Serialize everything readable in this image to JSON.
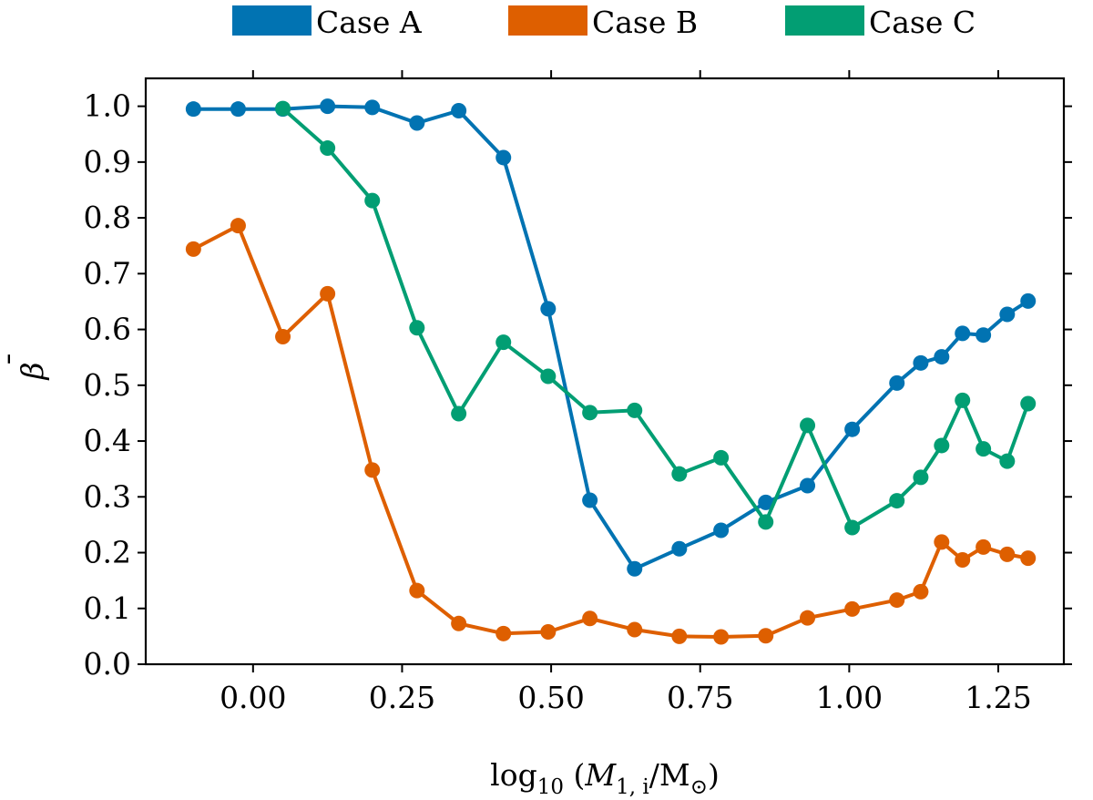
{
  "chart_data": {
    "type": "line",
    "xlabel_parts": {
      "base": "log",
      "sub": "10",
      "open": "(",
      "var": "M",
      "var_sub": "1, i",
      "slash": "/M",
      "sun": "⊙",
      "close": ")"
    },
    "ylabel_parts": {
      "symbol": "β",
      "bar": "¯"
    },
    "xlim": [
      -0.18,
      1.36
    ],
    "ylim": [
      0.0,
      1.05
    ],
    "xticks": [
      0.0,
      0.25,
      0.5,
      0.75,
      1.0,
      1.25
    ],
    "xtick_labels": [
      "0.00",
      "0.25",
      "0.50",
      "0.75",
      "1.00",
      "1.25"
    ],
    "yticks": [
      0.0,
      0.1,
      0.2,
      0.3,
      0.4,
      0.5,
      0.6,
      0.7,
      0.8,
      0.9,
      1.0
    ],
    "ytick_labels": [
      "0.0",
      "0.1",
      "0.2",
      "0.3",
      "0.4",
      "0.5",
      "0.6",
      "0.7",
      "0.8",
      "0.9",
      "1.0"
    ],
    "legend_position": "top-outside",
    "series": [
      {
        "name": "Case A",
        "color": "#0173b2",
        "x": [
          -0.1,
          -0.025,
          0.05,
          0.125,
          0.2,
          0.275,
          0.345,
          0.42,
          0.495,
          0.565,
          0.64,
          0.715,
          0.785,
          0.86,
          0.93,
          1.005,
          1.08,
          1.12,
          1.155,
          1.19,
          1.225,
          1.265,
          1.3
        ],
        "y": [
          0.995,
          0.995,
          0.995,
          1.0,
          0.998,
          0.97,
          0.992,
          0.908,
          0.637,
          0.294,
          0.171,
          0.207,
          0.24,
          0.29,
          0.32,
          0.421,
          0.504,
          0.54,
          0.551,
          0.593,
          0.59,
          0.627,
          0.651
        ]
      },
      {
        "name": "Case B",
        "color": "#de5f00",
        "x": [
          -0.1,
          -0.025,
          0.05,
          0.125,
          0.2,
          0.275,
          0.345,
          0.42,
          0.495,
          0.565,
          0.64,
          0.715,
          0.785,
          0.86,
          0.93,
          1.005,
          1.08,
          1.12,
          1.155,
          1.19,
          1.225,
          1.265,
          1.3
        ],
        "y": [
          0.744,
          0.786,
          0.587,
          0.664,
          0.348,
          0.132,
          0.073,
          0.055,
          0.058,
          0.082,
          0.062,
          0.05,
          0.049,
          0.051,
          0.083,
          0.099,
          0.115,
          0.13,
          0.219,
          0.187,
          0.21,
          0.197,
          0.19
        ]
      },
      {
        "name": "Case C",
        "color": "#029e73",
        "x": [
          0.05,
          0.125,
          0.2,
          0.275,
          0.345,
          0.42,
          0.495,
          0.565,
          0.64,
          0.715,
          0.785,
          0.86,
          0.93,
          1.005,
          1.08,
          1.12,
          1.155,
          1.19,
          1.225,
          1.265,
          1.3
        ],
        "y": [
          0.996,
          0.925,
          0.831,
          0.603,
          0.449,
          0.577,
          0.516,
          0.451,
          0.455,
          0.341,
          0.37,
          0.255,
          0.428,
          0.245,
          0.293,
          0.335,
          0.392,
          0.473,
          0.386,
          0.364,
          0.467
        ]
      }
    ]
  }
}
